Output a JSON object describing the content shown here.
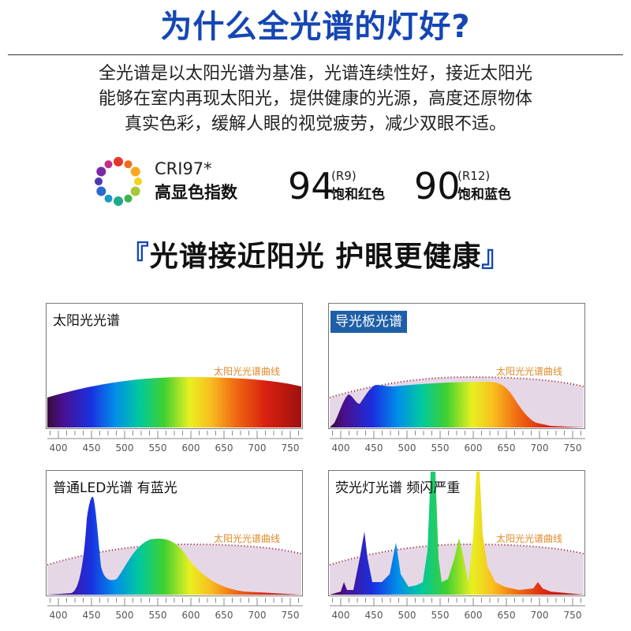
{
  "header": {
    "title": "为什么全光谱的灯好?"
  },
  "description": [
    "全光谱是以太阳光谱为基准，光谱连续性好，接近太阳光",
    "能够在室内再现太阳光，提供健康的光源，高度还原物体",
    "真实色彩，缓解人眼的视觉疲劳，减少双眼不适。"
  ],
  "metrics": {
    "cri": {
      "label": "CRI97*",
      "sublabel": "高显色指数"
    },
    "r9": {
      "value": "94",
      "tag": "(R9)",
      "label": "饱和红色"
    },
    "r12": {
      "value": "90",
      "tag": "(R12)",
      "label": "饱和蓝色"
    }
  },
  "slogan": {
    "open": "『",
    "text": "光谱接近阳光 护眼更健康",
    "close": "』"
  },
  "axis_ticks": [
    "400",
    "450",
    "500",
    "550",
    "600",
    "650",
    "700",
    "750"
  ],
  "panels": [
    {
      "title": "太阳光光谱",
      "ref_label": "太阳光光谱曲线"
    },
    {
      "title": "导光板光谱",
      "ref_label": "太阳光光谱曲线"
    },
    {
      "title": "普通LED光谱 有蓝光",
      "ref_label": "太阳光光谱曲线"
    },
    {
      "title": "荧光灯光谱 频闪严重",
      "ref_label": "太阳光光谱曲线"
    }
  ],
  "colors": {
    "title_blue": "#1546b4",
    "tag_bg": "#1f5fa8",
    "ref_orange": "#e0892a"
  }
}
